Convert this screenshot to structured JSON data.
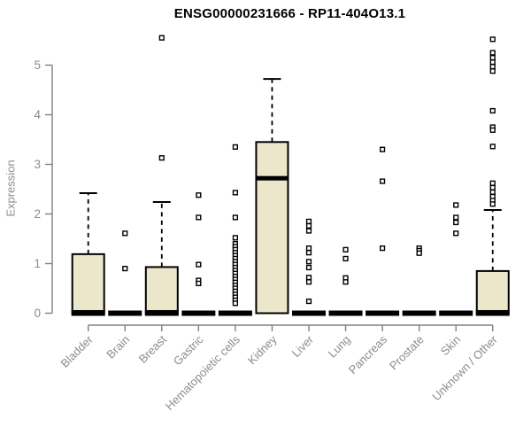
{
  "chart_data": {
    "type": "boxplot",
    "title": "ENSG00000231666 - RP11-404O13.1",
    "ylabel": "Expression",
    "ylim": [
      0,
      5
    ],
    "yticks": [
      "0",
      "1",
      "2",
      "3",
      "4",
      "5"
    ],
    "grid": false,
    "legend": "none",
    "categories": [
      "Bladder",
      "Brain",
      "Breast",
      "Gastric",
      "Hematopoietic cells",
      "Kidney",
      "Liver",
      "Lung",
      "Pancreas",
      "Prostate",
      "Skin",
      "Unknown / Other"
    ],
    "series": [
      {
        "category": "Bladder",
        "q1": 0,
        "median": 0.03,
        "q3": 1.19,
        "whisker_low": 0,
        "whisker_high": 2.42,
        "outliers": []
      },
      {
        "category": "Brain",
        "q1": 0,
        "median": 0,
        "q3": 0,
        "whisker_low": 0,
        "whisker_high": 0,
        "outliers": [
          1.61,
          0.9
        ]
      },
      {
        "category": "Breast",
        "q1": 0,
        "median": 0.03,
        "q3": 0.93,
        "whisker_low": 0,
        "whisker_high": 2.24,
        "outliers": [
          5.55,
          3.13
        ]
      },
      {
        "category": "Gastric",
        "q1": 0,
        "median": 0,
        "q3": 0,
        "whisker_low": 0,
        "whisker_high": 0,
        "outliers": [
          2.38,
          1.93,
          0.98,
          0.66,
          0.6
        ]
      },
      {
        "category": "Hematopoietic cells",
        "q1": 0,
        "median": 0,
        "q3": 0,
        "whisker_low": 0,
        "whisker_high": 0,
        "outliers": [
          3.35,
          2.43,
          1.93,
          1.52,
          1.4,
          1.34,
          1.28,
          1.22,
          1.16,
          1.1,
          1.04,
          0.98,
          0.92,
          0.86,
          0.8,
          0.74,
          0.68,
          0.62,
          0.56,
          0.5,
          0.44,
          0.38,
          0.32,
          0.26,
          0.2
        ]
      },
      {
        "category": "Kidney",
        "q1": 0,
        "median": 2.72,
        "q3": 3.45,
        "whisker_low": 0,
        "whisker_high": 4.72,
        "outliers": []
      },
      {
        "category": "Liver",
        "q1": 0,
        "median": 0,
        "q3": 0,
        "whisker_low": 0,
        "whisker_high": 0,
        "outliers": [
          1.85,
          1.76,
          1.66,
          1.31,
          1.22,
          1.04,
          0.92,
          0.72,
          0.63,
          0.24
        ]
      },
      {
        "category": "Lung",
        "q1": 0,
        "median": 0,
        "q3": 0,
        "whisker_low": 0,
        "whisker_high": 0,
        "outliers": [
          1.28,
          1.1,
          0.71,
          0.63
        ]
      },
      {
        "category": "Pancreas",
        "q1": 0,
        "median": 0,
        "q3": 0,
        "whisker_low": 0,
        "whisker_high": 0,
        "outliers": [
          3.3,
          2.66,
          1.31
        ]
      },
      {
        "category": "Prostate",
        "q1": 0,
        "median": 0,
        "q3": 0,
        "whisker_low": 0,
        "whisker_high": 0,
        "outliers": [
          1.31,
          1.26,
          1.21
        ]
      },
      {
        "category": "Skin",
        "q1": 0,
        "median": 0,
        "q3": 0,
        "whisker_low": 0,
        "whisker_high": 0,
        "outliers": [
          2.18,
          1.93,
          1.83,
          1.61
        ]
      },
      {
        "category": "Unknown / Other",
        "q1": 0,
        "median": 0.03,
        "q3": 0.85,
        "whisker_low": 0,
        "whisker_high": 2.08,
        "outliers": [
          5.52,
          5.25,
          5.15,
          5.06,
          4.97,
          4.88,
          4.08,
          3.75,
          3.69,
          3.36,
          2.62,
          2.53,
          2.44,
          2.35,
          2.27,
          2.2
        ]
      }
    ],
    "colors": {
      "box_fill": "#ece7cb",
      "box_stroke": "#000000",
      "median": "#000000",
      "whisker": "#000000",
      "outlier_fill": "#ffffff",
      "outlier_stroke": "#000000",
      "axis_line": "#808080",
      "axis_text": "#8c8c8c",
      "title_text": "#000000"
    }
  }
}
